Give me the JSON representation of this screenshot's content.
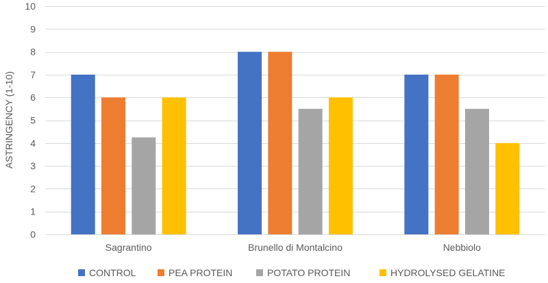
{
  "chart_data": {
    "type": "bar",
    "title": "",
    "xlabel": "",
    "ylabel": "ASTRINGENCY (1-10)",
    "ylim": [
      0,
      10
    ],
    "yticks": [
      0,
      1,
      2,
      3,
      4,
      5,
      6,
      7,
      8,
      9,
      10
    ],
    "categories": [
      "Sagrantino",
      "Brunello di Montalcino",
      "Nebbiolo"
    ],
    "series": [
      {
        "name": "CONTROL",
        "color": "#4472C4",
        "values": [
          7,
          8,
          7
        ]
      },
      {
        "name": "PEA PROTEIN",
        "color": "#ED7D31",
        "values": [
          6,
          8,
          7
        ]
      },
      {
        "name": "POTATO PROTEIN",
        "color": "#A5A5A5",
        "values": [
          4.25,
          5.5,
          5.5
        ]
      },
      {
        "name": "HYDROLYSED GELATINE",
        "color": "#FFC000",
        "values": [
          6,
          6,
          4
        ]
      }
    ],
    "grid": true,
    "legend_position": "bottom",
    "gridline_color": "#D9D9D9"
  }
}
